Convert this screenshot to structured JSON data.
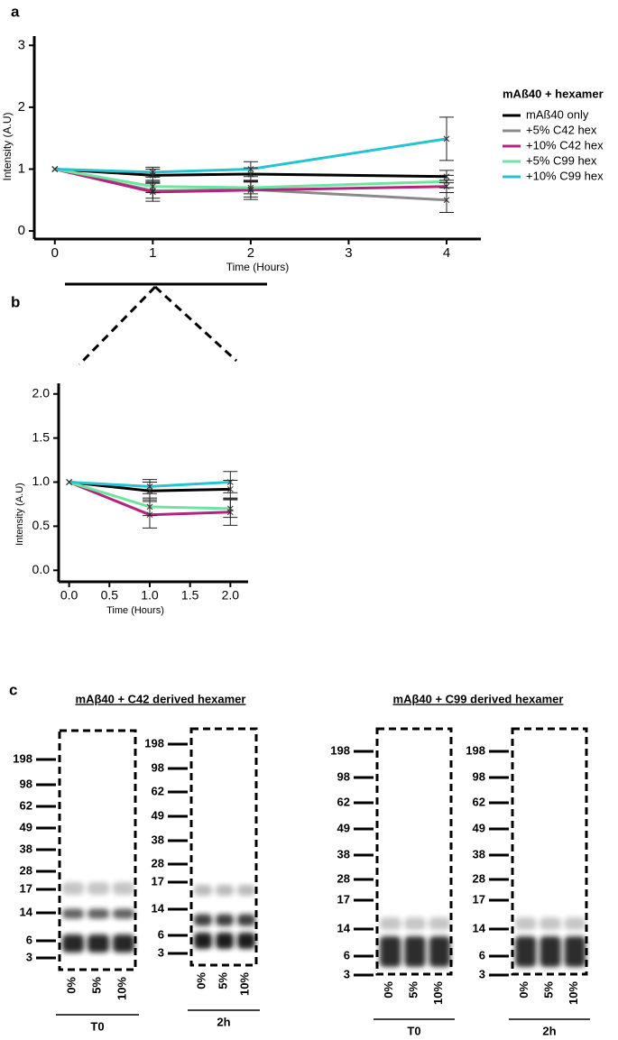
{
  "panel_labels": [
    "a",
    "b",
    "c"
  ],
  "chart_data": [
    {
      "type": "line",
      "xlabel": "Time (Hours)",
      "ylabel": "Intensity (A.U)",
      "x": [
        0,
        1,
        2,
        4
      ],
      "xlim": [
        -0.21,
        4.35
      ],
      "xticks": [
        0,
        1,
        2,
        3,
        4
      ],
      "ylim": [
        -0.13,
        3.15
      ],
      "yticks": [
        0,
        1,
        2,
        3
      ],
      "legend": "right",
      "legend_title": "mAß40 + hexamer",
      "series": [
        {
          "name": "mAß40 only",
          "color": "#000000",
          "values": [
            1,
            0.9,
            0.92,
            0.88
          ],
          "errors": [
            null,
            0.1,
            0.1,
            0.1
          ]
        },
        {
          "name": "+5% C42 hex",
          "color": "#8a8a8a",
          "values": [
            1,
            0.65,
            0.67,
            0.5
          ],
          "errors": [
            null,
            0.12,
            0.12,
            0.2
          ]
        },
        {
          "name": "+10% C42 hex",
          "color": "#b3247c",
          "values": [
            1,
            0.63,
            0.66,
            0.72
          ],
          "errors": [
            null,
            0.15,
            0.15,
            0.1
          ]
        },
        {
          "name": "+5% C99 hex",
          "color": "#6fe3a0",
          "values": [
            1,
            0.72,
            0.7,
            0.8
          ],
          "errors": [
            null,
            0.1,
            0.1,
            0.1
          ]
        },
        {
          "name": "+10% C99 hex",
          "color": "#26c4d0",
          "values": [
            1,
            0.95,
            1.0,
            1.49
          ],
          "errors": [
            null,
            0.08,
            0.12,
            0.35
          ]
        }
      ]
    },
    {
      "type": "line",
      "xlabel": "Time (Hours)",
      "ylabel": "Intensity (A.U)",
      "x": [
        0,
        1,
        2
      ],
      "xlim": [
        -0.13,
        2.22
      ],
      "xticks": [
        {
          "value": 0,
          "label": "0.0"
        },
        {
          "value": 0.5,
          "label": "0.5"
        },
        {
          "value": 1,
          "label": "1.0"
        },
        {
          "value": 1.5,
          "label": "1.5"
        },
        {
          "value": 2,
          "label": "2.0"
        }
      ],
      "ylim": [
        -0.13,
        2.12
      ],
      "yticks": [
        {
          "value": 0,
          "label": "0.0"
        },
        {
          "value": 0.5,
          "label": "0.5"
        },
        {
          "value": 1,
          "label": "1.0"
        },
        {
          "value": 1.5,
          "label": "1.5"
        },
        {
          "value": 2,
          "label": "2.0"
        }
      ],
      "series": [
        {
          "color": "#000000",
          "values": [
            1,
            0.9,
            0.92
          ],
          "errors": [
            null,
            0.1,
            0.1
          ]
        },
        {
          "color": "#b3247c",
          "values": [
            1,
            0.63,
            0.66
          ],
          "errors": [
            null,
            0.15,
            0.15
          ]
        },
        {
          "color": "#6fe3a0",
          "values": [
            1,
            0.72,
            0.7
          ],
          "errors": [
            null,
            0.1,
            0.1
          ]
        },
        {
          "color": "#26c4d0",
          "values": [
            1,
            0.95,
            1.0
          ],
          "errors": [
            null,
            0.08,
            0.12
          ]
        }
      ]
    }
  ],
  "gels": {
    "markers": [
      "198",
      "98",
      "62",
      "49",
      "38",
      "28",
      "17",
      "14",
      "6",
      "3"
    ],
    "lanes": [
      "0%",
      "5%",
      "10%"
    ],
    "panels": [
      {
        "title": "mAβ40 + C42 derived hexamer",
        "times": [
          "T0",
          "2h"
        ]
      },
      {
        "title": "mAβ40 + C99 derived hexamer",
        "times": [
          "T0",
          "2h"
        ]
      }
    ]
  }
}
